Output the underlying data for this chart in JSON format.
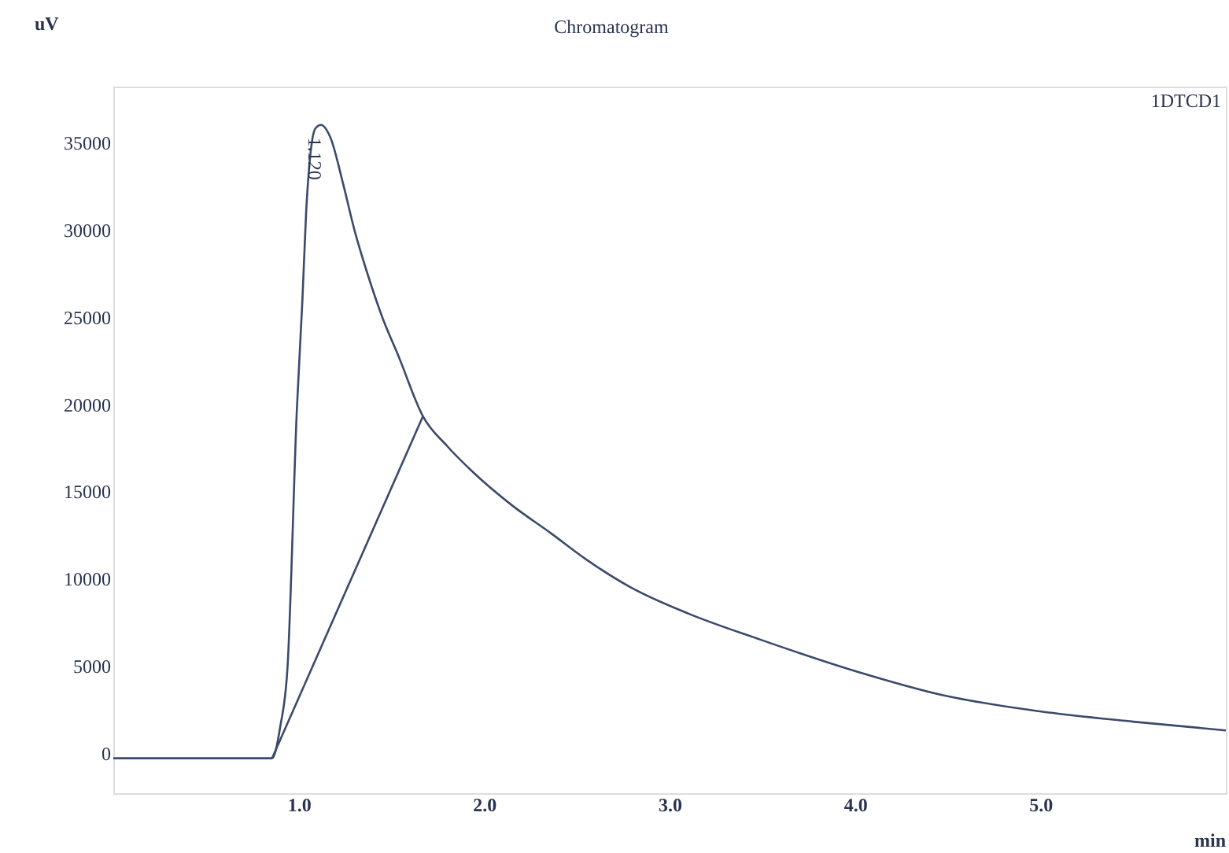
{
  "chart_data": {
    "type": "line",
    "title": "Chromatogram",
    "xlabel": "min",
    "ylabel": "uV",
    "xlim": [
      0,
      6
    ],
    "ylim": [
      -2300,
      38200
    ],
    "xticks": [
      {
        "value": 1,
        "label": "1.0"
      },
      {
        "value": 2,
        "label": "2.0"
      },
      {
        "value": 3,
        "label": "3.0"
      },
      {
        "value": 4,
        "label": "4.0"
      },
      {
        "value": 5,
        "label": "5.0"
      }
    ],
    "yticks": [
      0,
      5000,
      10000,
      15000,
      20000,
      25000,
      30000,
      35000
    ],
    "grid": false,
    "marker": "none",
    "line_style": "solid",
    "series": [
      {
        "color": "#3b4a6b",
        "x": [
          0,
          0.5,
          0.856,
          0.9,
          0.94,
          0.99,
          1.02,
          1.04,
          1.06,
          1.09,
          1.12,
          1.17,
          1.24,
          1.3,
          1.37,
          1.45,
          1.54,
          1.67,
          1.8,
          1.94,
          2.15,
          2.36,
          2.55,
          2.79,
          3.1,
          3.49,
          4.0,
          4.48,
          4.99,
          5.5,
          6.0
        ],
        "values": [
          -300,
          -300,
          -300,
          1500,
          5000,
          19700,
          26000,
          31000,
          34000,
          35800,
          36000,
          35300,
          32600,
          30000,
          27500,
          25000,
          22700,
          19300,
          17600,
          16100,
          14200,
          12600,
          11100,
          9500,
          8000,
          6500,
          4700,
          3300,
          2400,
          1800,
          1300
        ]
      },
      {
        "color": "#3b4a6b",
        "x": [
          0.856,
          1.67
        ],
        "values": [
          -300,
          19300
        ]
      }
    ],
    "annotations": [
      {
        "text": "1.120",
        "x": 1.12,
        "y": 36000
      },
      "1DTCD1"
    ]
  }
}
